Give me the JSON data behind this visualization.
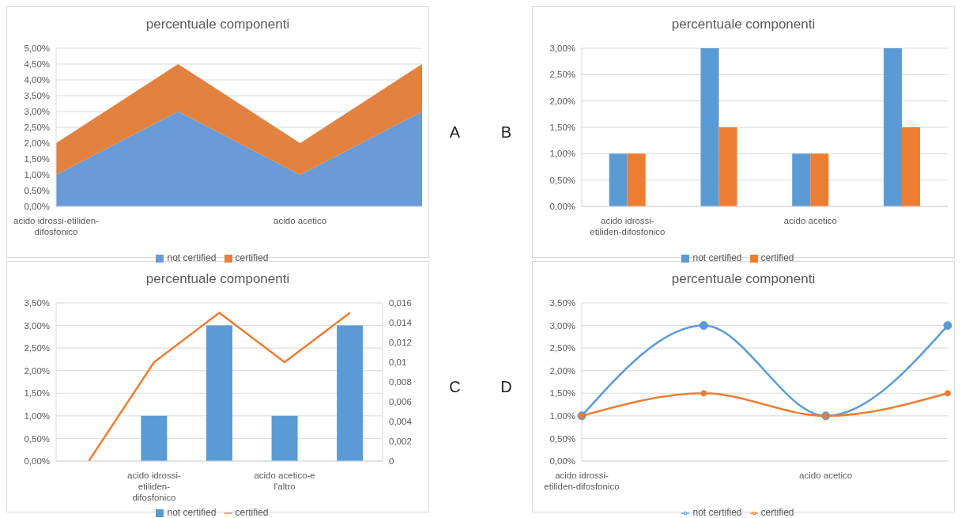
{
  "chart_data": [
    {
      "type": "area",
      "title": "percentuale componenti",
      "categories": [
        "acido idrossi-etiliden-difosfonico",
        null,
        "acido acetico",
        null
      ],
      "stacked": true,
      "series": [
        {
          "name": "not certified",
          "color": "#6a9bd6",
          "values": [
            1,
            3,
            1,
            3
          ]
        },
        {
          "name": "certified",
          "color": "#e3813f",
          "values": [
            1,
            1.5,
            1,
            1.5
          ]
        }
      ],
      "ylim": [
        0,
        5
      ],
      "yticks": [
        {
          "value": 0,
          "label": "0,00%"
        },
        {
          "value": 0.5,
          "label": "0,50%"
        },
        {
          "value": 1,
          "label": "1,00%"
        },
        {
          "value": 1.5,
          "label": "1,50%"
        },
        {
          "value": 2,
          "label": "2,00%"
        },
        {
          "value": 2.5,
          "label": "2,50%"
        },
        {
          "value": 3,
          "label": "3,00%"
        },
        {
          "value": 3.5,
          "label": "3,50%"
        },
        {
          "value": 4,
          "label": "4,00%"
        },
        {
          "value": 4.5,
          "label": "4,50%"
        },
        {
          "value": 5,
          "label": "5,00%"
        }
      ],
      "grid": "y",
      "legend": "bottom",
      "annotations": [
        "A"
      ]
    },
    {
      "type": "bar",
      "title": "percentuale componenti",
      "categories": [
        "acido idrossi-etiliden-difosfonico",
        null,
        "acido acetico",
        null
      ],
      "series": [
        {
          "name": "not certified",
          "color": "#5b9bd5",
          "values": [
            1,
            3,
            1,
            3
          ]
        },
        {
          "name": "certified",
          "color": "#ed7d31",
          "values": [
            1,
            1.5,
            1,
            1.5
          ]
        }
      ],
      "ylim": [
        0,
        3
      ],
      "yticks": [
        {
          "value": 0,
          "label": "0,00%"
        },
        {
          "value": 0.5,
          "label": "0,50%"
        },
        {
          "value": 1,
          "label": "1,00%"
        },
        {
          "value": 1.5,
          "label": "1,50%"
        },
        {
          "value": 2,
          "label": "2,00%"
        },
        {
          "value": 2.5,
          "label": "2,50%"
        },
        {
          "value": 3,
          "label": "3,00%"
        }
      ],
      "grid": "y",
      "legend": "bottom",
      "annotations": [
        "B"
      ]
    },
    {
      "type": "bar",
      "title": "percentuale componenti",
      "categories": [
        null,
        "acido idrossi-etiliden-difosfonico",
        null,
        "acido acetico-e l'altro",
        null
      ],
      "series": [
        {
          "name": "not certified",
          "color": "#5b9bd5",
          "values": [
            null,
            1,
            3,
            1,
            3
          ]
        },
        {
          "name": "certified",
          "type": "line",
          "axis": "y2",
          "color": "#ed7d31",
          "values": [
            0,
            0.01,
            0.015,
            0.01,
            0.015
          ]
        }
      ],
      "ylim": [
        0,
        3.5
      ],
      "yticks": [
        {
          "value": 0,
          "label": "0,00%"
        },
        {
          "value": 0.5,
          "label": "0,50%"
        },
        {
          "value": 1,
          "label": "1,00%"
        },
        {
          "value": 1.5,
          "label": "1,50%"
        },
        {
          "value": 2,
          "label": "2,00%"
        },
        {
          "value": 2.5,
          "label": "2,50%"
        },
        {
          "value": 3,
          "label": "3,00%"
        },
        {
          "value": 3.5,
          "label": "3,50%"
        }
      ],
      "y2lim": [
        0,
        0.016
      ],
      "y2ticks": [
        0,
        {
          "value": 0.002,
          "label": "0,002"
        },
        {
          "value": 0.004,
          "label": "0,004"
        },
        {
          "value": 0.006,
          "label": "0,006"
        },
        {
          "value": 0.008,
          "label": "0,008"
        },
        {
          "value": 0.01,
          "label": "0,01"
        },
        {
          "value": 0.012,
          "label": "0,012"
        },
        {
          "value": 0.014,
          "label": "0,014"
        },
        {
          "value": 0.016,
          "label": "0,016"
        }
      ],
      "grid": "y",
      "legend": "bottom",
      "annotations": [
        "C"
      ]
    },
    {
      "type": "line",
      "title": "percentuale componenti",
      "categories": [
        "acido idrossi-etiliden-difosfonico",
        null,
        "acido acetico",
        null
      ],
      "series": [
        {
          "name": "not certified",
          "color": "#5b9bd5",
          "values": [
            1,
            3,
            1,
            3
          ]
        },
        {
          "name": "certified",
          "color": "#ed7d31",
          "values": [
            1,
            1.5,
            1,
            1.5
          ]
        }
      ],
      "ylim": [
        0,
        3.5
      ],
      "yticks": [
        {
          "value": 0,
          "label": "0,00%"
        },
        {
          "value": 0.5,
          "label": "0,50%"
        },
        {
          "value": 1,
          "label": "1,00%"
        },
        {
          "value": 1.5,
          "label": "1,50%"
        },
        {
          "value": 2,
          "label": "2,00%"
        },
        {
          "value": 2.5,
          "label": "2,50%"
        },
        {
          "value": 3,
          "label": "3,00%"
        },
        {
          "value": 3.5,
          "label": "3,50%"
        }
      ],
      "grid": "y",
      "legend": "bottom",
      "marker": "circle",
      "annotations": [
        "D"
      ]
    }
  ]
}
